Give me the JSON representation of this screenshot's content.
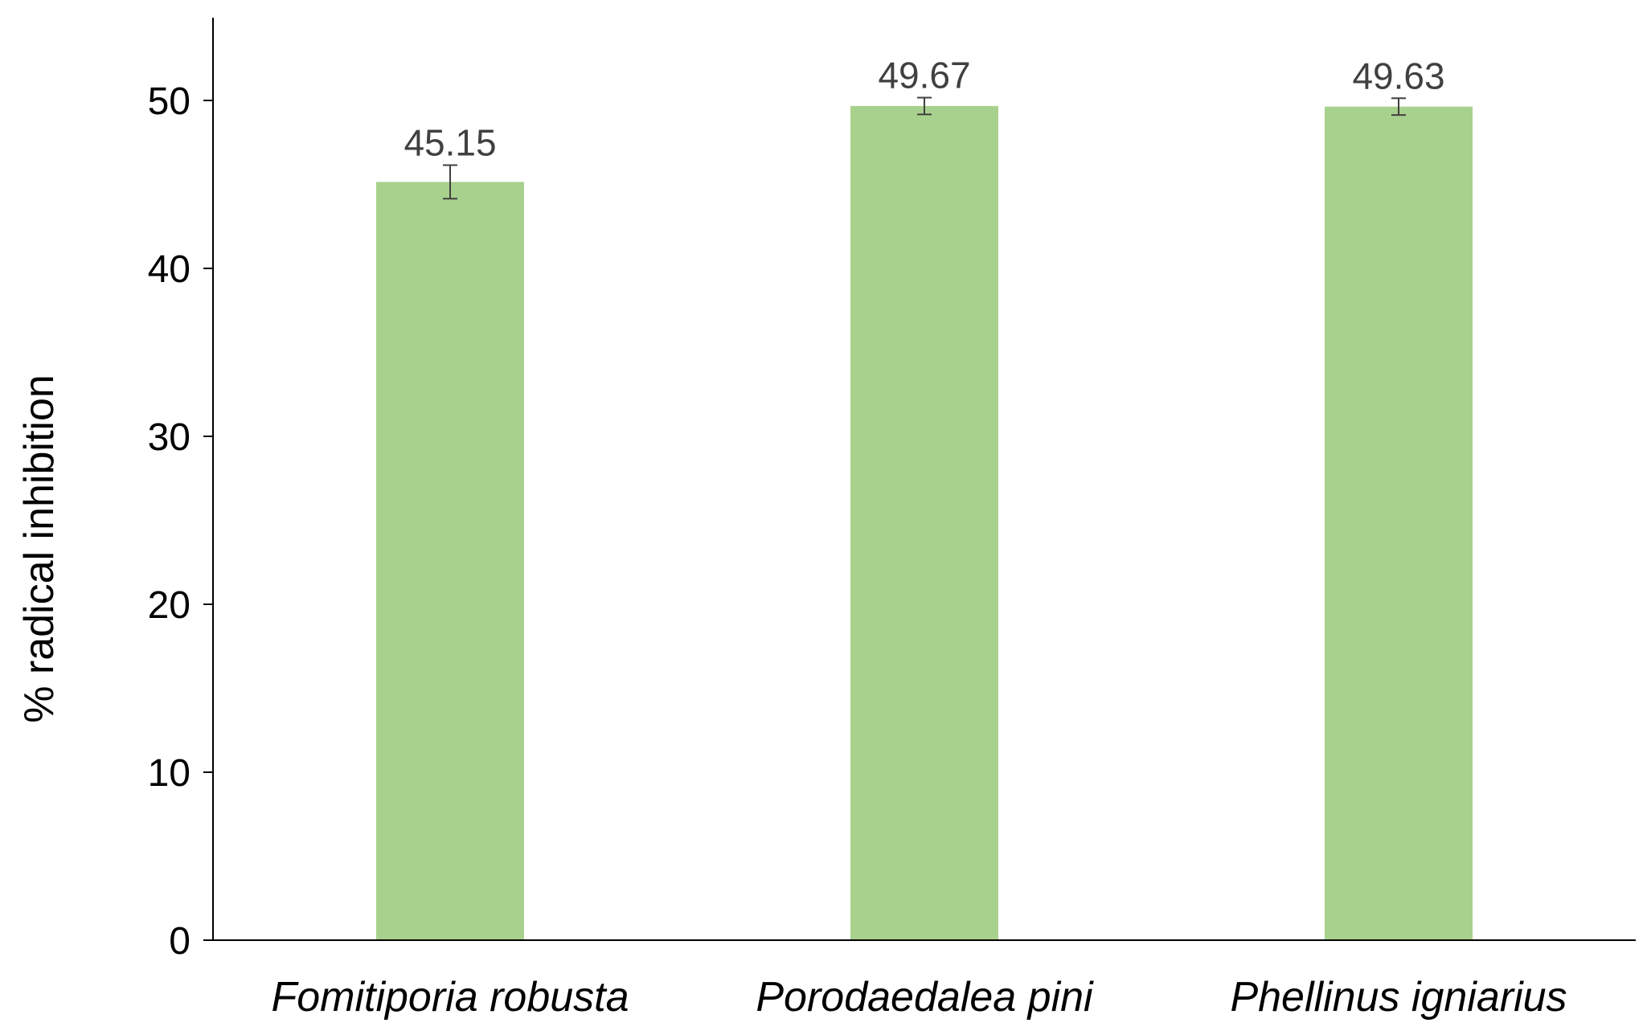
{
  "chart_data": {
    "type": "bar",
    "categories": [
      "Fomitiporia robusta",
      "Porodaedalea pini",
      "Phellinus igniarius"
    ],
    "values": [
      45.15,
      49.67,
      49.63
    ],
    "data_labels": [
      "45.15",
      "49.67",
      "49.63"
    ],
    "error": [
      1.0,
      0.5,
      0.5
    ],
    "title": "",
    "xlabel": "",
    "ylabel": "% radical inhibition",
    "ylim": [
      0,
      55
    ],
    "yticks": [
      0,
      10,
      20,
      30,
      40,
      50
    ],
    "grid": false,
    "legend": "none",
    "bar_color": "#a9d18e",
    "error_bar_color": "#404040"
  }
}
